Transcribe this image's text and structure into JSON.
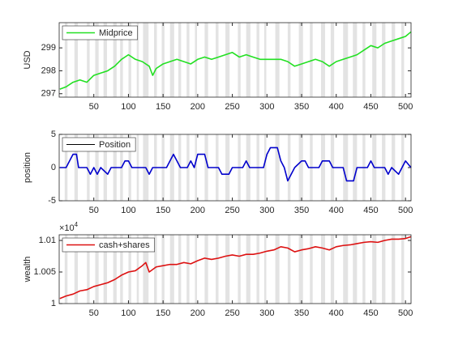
{
  "shaded_intervals": [
    [
      8,
      12
    ],
    [
      22,
      27
    ],
    [
      40,
      44
    ],
    [
      52,
      57
    ],
    [
      64,
      69
    ],
    [
      78,
      83
    ],
    [
      88,
      92
    ],
    [
      100,
      104
    ],
    [
      112,
      115
    ],
    [
      121,
      129
    ],
    [
      137,
      141
    ],
    [
      148,
      152
    ],
    [
      160,
      166
    ],
    [
      172,
      176
    ],
    [
      184,
      188
    ],
    [
      196,
      199
    ],
    [
      210,
      215
    ],
    [
      226,
      230
    ],
    [
      240,
      246
    ],
    [
      258,
      262
    ],
    [
      270,
      276
    ],
    [
      285,
      289
    ],
    [
      296,
      299
    ],
    [
      312,
      318
    ],
    [
      330,
      334
    ],
    [
      346,
      352
    ],
    [
      362,
      366
    ],
    [
      378,
      384
    ],
    [
      392,
      397
    ],
    [
      410,
      417
    ],
    [
      424,
      430
    ],
    [
      438,
      442
    ],
    [
      452,
      458
    ],
    [
      466,
      471
    ],
    [
      480,
      485
    ],
    [
      494,
      498
    ]
  ],
  "chart_data": [
    {
      "type": "line",
      "ylabel": "USD",
      "legend": "upper left",
      "xlim": [
        0,
        508
      ],
      "xticks": [
        50,
        100,
        150,
        200,
        250,
        300,
        350,
        400,
        450,
        500
      ],
      "ylim": [
        296.85,
        300.1
      ],
      "yticks": [
        297,
        298,
        299
      ],
      "x": [
        1,
        10,
        20,
        30,
        40,
        50,
        60,
        70,
        80,
        90,
        100,
        110,
        120,
        130,
        135,
        140,
        150,
        160,
        170,
        180,
        190,
        200,
        210,
        220,
        230,
        240,
        250,
        260,
        270,
        280,
        290,
        300,
        310,
        320,
        330,
        340,
        350,
        360,
        370,
        380,
        390,
        400,
        410,
        420,
        430,
        440,
        450,
        460,
        470,
        480,
        490,
        500,
        508
      ],
      "series": [
        {
          "name": "Midprice",
          "color": "#22e022",
          "values": [
            297.2,
            297.3,
            297.5,
            297.6,
            297.5,
            297.8,
            297.9,
            298.0,
            298.2,
            298.5,
            298.7,
            298.5,
            298.4,
            298.2,
            297.8,
            298.1,
            298.3,
            298.4,
            298.5,
            298.4,
            298.3,
            298.5,
            298.6,
            298.5,
            298.6,
            298.7,
            298.8,
            298.6,
            298.7,
            298.6,
            298.5,
            298.5,
            298.5,
            298.5,
            298.4,
            298.2,
            298.3,
            298.4,
            298.5,
            298.4,
            298.2,
            298.4,
            298.5,
            298.6,
            298.7,
            298.9,
            299.1,
            299.0,
            299.2,
            299.3,
            299.4,
            299.5,
            299.7
          ]
        }
      ]
    },
    {
      "type": "line",
      "ylabel": "position",
      "legend": "upper left",
      "xlim": [
        0,
        508
      ],
      "xticks": [
        50,
        100,
        150,
        200,
        250,
        300,
        350,
        400,
        450,
        500
      ],
      "ylim": [
        -5,
        5
      ],
      "yticks": [
        -5,
        0,
        5
      ],
      "x": [
        1,
        10,
        15,
        20,
        25,
        28,
        40,
        45,
        50,
        55,
        60,
        70,
        75,
        90,
        95,
        100,
        105,
        125,
        130,
        135,
        155,
        160,
        165,
        170,
        175,
        185,
        190,
        195,
        200,
        210,
        215,
        230,
        235,
        245,
        250,
        265,
        270,
        275,
        295,
        300,
        305,
        315,
        320,
        325,
        330,
        335,
        340,
        350,
        355,
        360,
        375,
        380,
        390,
        395,
        410,
        415,
        425,
        430,
        445,
        450,
        455,
        470,
        475,
        480,
        490,
        495,
        500,
        508
      ],
      "series": [
        {
          "name": "Position",
          "color": "#0000cc",
          "legend_color": "#000000",
          "values": [
            0,
            0,
            1,
            2,
            2,
            0,
            0,
            -1,
            0,
            -1,
            0,
            -1,
            0,
            0,
            1,
            1,
            0,
            0,
            -1,
            0,
            0,
            1,
            2,
            1,
            0,
            0,
            1,
            0,
            2,
            2,
            0,
            0,
            -1,
            -1,
            0,
            0,
            1,
            0,
            0,
            2,
            3,
            3,
            1,
            0,
            -2,
            -1,
            0,
            1,
            1,
            0,
            0,
            1,
            1,
            0,
            0,
            -2,
            -2,
            0,
            0,
            1,
            0,
            0,
            -1,
            0,
            -1,
            0,
            1,
            0
          ]
        }
      ]
    },
    {
      "type": "line",
      "ylabel": "wealth",
      "legend": "upper left",
      "y_scale_base": "×10",
      "y_scale_exponent": 4,
      "xlim": [
        0,
        508
      ],
      "xticks": [
        50,
        100,
        150,
        200,
        250,
        300,
        350,
        400,
        450,
        500
      ],
      "ylim": [
        1,
        1.0109
      ],
      "yticks": [
        1,
        1.005,
        1.01
      ],
      "x": [
        1,
        10,
        20,
        30,
        40,
        50,
        60,
        70,
        80,
        90,
        100,
        110,
        120,
        125,
        130,
        140,
        150,
        160,
        170,
        180,
        190,
        200,
        210,
        220,
        230,
        240,
        250,
        260,
        270,
        280,
        290,
        300,
        310,
        320,
        330,
        340,
        350,
        360,
        370,
        380,
        390,
        400,
        410,
        420,
        430,
        440,
        450,
        460,
        470,
        480,
        490,
        500,
        508
      ],
      "series": [
        {
          "name": "cash+shares",
          "color": "#dd1111",
          "values": [
            1.0008,
            1.0012,
            1.0015,
            1.002,
            1.0022,
            1.0027,
            1.003,
            1.0033,
            1.0038,
            1.0045,
            1.005,
            1.0052,
            1.006,
            1.0065,
            1.005,
            1.0058,
            1.006,
            1.0062,
            1.0062,
            1.0065,
            1.0063,
            1.0068,
            1.0072,
            1.007,
            1.0072,
            1.0075,
            1.0077,
            1.0075,
            1.0078,
            1.0078,
            1.008,
            1.0083,
            1.0085,
            1.009,
            1.0088,
            1.0082,
            1.0085,
            1.0087,
            1.009,
            1.0088,
            1.0085,
            1.009,
            1.0092,
            1.0093,
            1.0095,
            1.0097,
            1.0098,
            1.0097,
            1.01,
            1.0102,
            1.0102,
            1.0103,
            1.0106
          ]
        }
      ]
    }
  ]
}
